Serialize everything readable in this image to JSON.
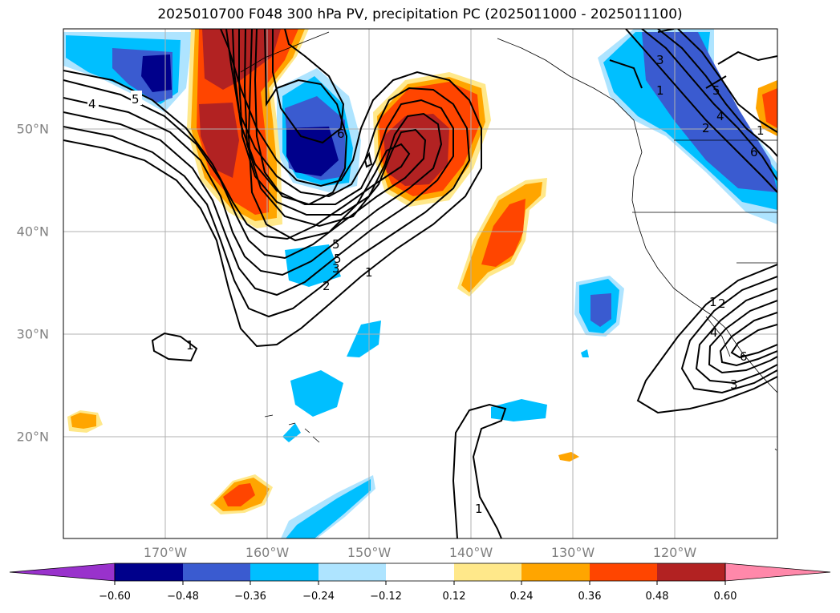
{
  "title": "2025010700 F048 300 hPa PV, precipitation PC (2025011000 - 2025011100)",
  "map": {
    "lat_labels": [
      "50°N",
      "40°N",
      "30°N",
      "20°N"
    ],
    "lon_labels": [
      "170°W",
      "160°W",
      "150°W",
      "140°W",
      "130°W",
      "120°W"
    ],
    "lat_values": [
      50,
      40,
      30,
      20
    ],
    "lon_values": [
      -170,
      -160,
      -150,
      -140,
      -130,
      -120
    ],
    "extent": {
      "lon_min": -180,
      "lon_max": -110,
      "lat_min": 10,
      "lat_max": 59.5
    },
    "grid": true,
    "contour_labels": [
      "4",
      "5",
      "5",
      "6",
      "5",
      "3",
      "2",
      "1",
      "1",
      "3",
      "1",
      "5",
      "2",
      "4",
      "6",
      "1",
      "1",
      "2",
      "4",
      "6",
      "3",
      "1"
    ]
  },
  "colorbar": {
    "ticks": [
      "−0.60",
      "−0.48",
      "−0.36",
      "−0.24",
      "−0.12",
      "0.12",
      "0.24",
      "0.36",
      "0.48",
      "0.60"
    ],
    "colors": [
      "#9932cc",
      "#00008b",
      "#3a5bd0",
      "#00bfff",
      "#aee4ff",
      "#ffffff",
      "#ffe88a",
      "#ffa500",
      "#ff4500",
      "#b22222",
      "#ff88aa"
    ]
  }
}
